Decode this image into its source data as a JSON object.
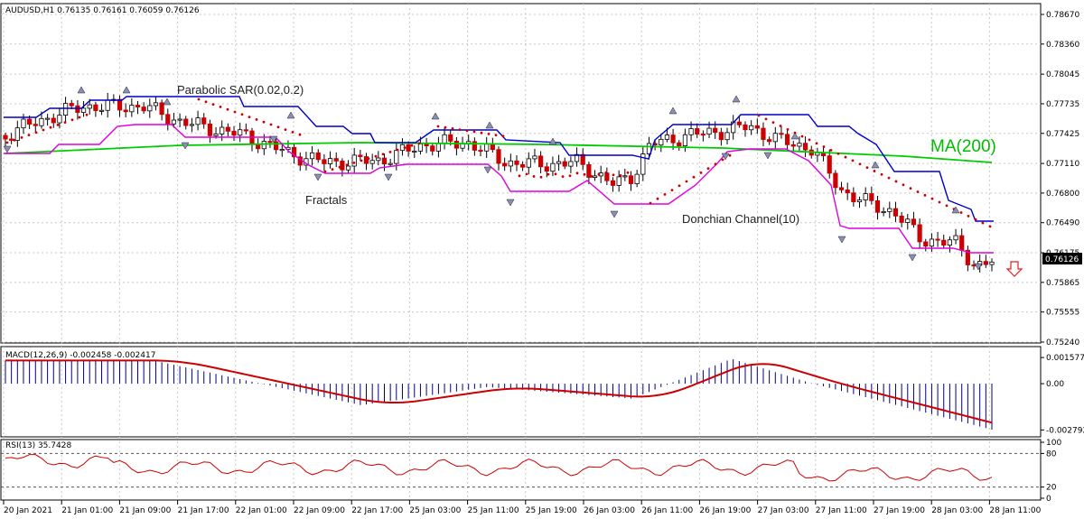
{
  "chart_data": {
    "type": "candlestick",
    "symbol_header": "AUDUSD,H1  0.76135 0.76161 0.76059 0.76126",
    "last_price": "0.76126",
    "price_axis": {
      "ticks": [
        "0.78670",
        "0.78360",
        "0.78045",
        "0.77735",
        "0.77425",
        "0.77110",
        "0.76800",
        "0.76490",
        "0.76175",
        "0.75865",
        "0.75555",
        "0.75240"
      ],
      "ylim": [
        0.7524,
        0.7867
      ]
    },
    "time_axis": {
      "labels": [
        "20 Jan 2021",
        "21 Jan 01:00",
        "21 Jan 09:00",
        "21 Jan 17:00",
        "22 Jan 01:00",
        "22 Jan 09:00",
        "22 Jan 17:00",
        "25 Jan 03:00",
        "25 Jan 11:00",
        "25 Jan 19:00",
        "26 Jan 03:00",
        "26 Jan 11:00",
        "26 Jan 19:00",
        "27 Jan 03:00",
        "27 Jan 11:00",
        "27 Jan 19:00",
        "28 Jan 03:00",
        "28 Jan 11:00"
      ]
    },
    "annotations": {
      "parabolic_sar": "Parabolic SAR(0.02,0.2)",
      "fractals": "Fractals",
      "donchian": "Donchian Channel(10)",
      "ma": "MA(200)"
    },
    "macd": {
      "label": "MACD(12,26,9) -0.002458 -0.002417",
      "ticks": [
        "0.001577",
        "0.00",
        "-0.002792"
      ],
      "ylim": [
        -0.0031,
        0.0018
      ]
    },
    "rsi": {
      "label": "RSI(13) 35.7428",
      "ticks": [
        "100",
        "80",
        "20",
        "0"
      ],
      "ylim": [
        0,
        100
      ]
    },
    "colors": {
      "bull": "#ffffff",
      "bear": "#cc0000",
      "donchian_upper": "#0000cc",
      "donchian_lower": "#dd00dd",
      "ma": "#00cc00",
      "sar": "#cc0000",
      "macd_hist": "#000080",
      "macd_signal": "#cc0000",
      "rsi": "#cc0000",
      "sell_arrow": "#dd2222"
    }
  }
}
